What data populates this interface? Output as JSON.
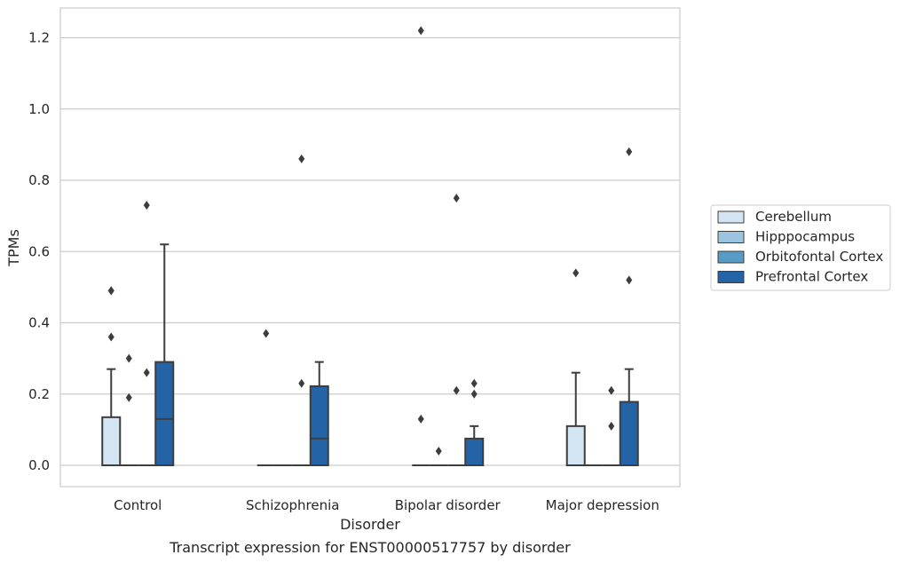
{
  "caption": "Transcript expression for ENST00000517757 by disorder",
  "chart_data": {
    "type": "box",
    "xlabel": "Disorder",
    "ylabel": "TPMs",
    "ylim": [
      -0.06,
      1.28
    ],
    "yticks": [
      0.0,
      0.2,
      0.4,
      0.6,
      0.8,
      1.0,
      1.2
    ],
    "ytick_labels": [
      "0.0",
      "0.2",
      "0.4",
      "0.6",
      "0.8",
      "1.0",
      "1.2"
    ],
    "categories": [
      "Control",
      "Schizophrenia",
      "Bipolar disorder",
      "Major depression"
    ],
    "grid": "horizontal",
    "legend_position": "right",
    "series": [
      {
        "name": "Cerebellum",
        "color": "#d3e4f3",
        "boxes": [
          {
            "q1": 0,
            "median": 0,
            "q3": 0.135,
            "whisker_low": 0,
            "whisker_high": 0.27,
            "outliers": [
              0.36,
              0.49,
              0.49
            ]
          },
          {
            "q1": 0,
            "median": 0,
            "q3": 0,
            "whisker_low": 0,
            "whisker_high": 0,
            "outliers": [
              0.37
            ]
          },
          {
            "q1": 0,
            "median": 0,
            "q3": 0,
            "whisker_low": 0,
            "whisker_high": 0,
            "outliers": [
              0.13,
              1.22
            ]
          },
          {
            "q1": 0,
            "median": 0,
            "q3": 0.11,
            "whisker_low": 0,
            "whisker_high": 0.26,
            "outliers": [
              0.54
            ]
          }
        ]
      },
      {
        "name": "Hipppocampus",
        "color": "#9cc4de",
        "boxes": [
          {
            "q1": 0,
            "median": 0,
            "q3": 0,
            "whisker_low": 0,
            "whisker_high": 0,
            "outliers": [
              0.19,
              0.3
            ]
          },
          {
            "q1": 0,
            "median": 0,
            "q3": 0,
            "whisker_low": 0,
            "whisker_high": 0,
            "outliers": []
          },
          {
            "q1": 0,
            "median": 0,
            "q3": 0,
            "whisker_low": 0,
            "whisker_high": 0,
            "outliers": [
              0.04
            ]
          },
          {
            "q1": 0,
            "median": 0,
            "q3": 0,
            "whisker_low": 0,
            "whisker_high": 0,
            "outliers": []
          }
        ]
      },
      {
        "name": "Orbitofontal Cortex",
        "color": "#5a9ac6",
        "boxes": [
          {
            "q1": 0,
            "median": 0,
            "q3": 0,
            "whisker_low": 0,
            "whisker_high": 0,
            "outliers": [
              0.26,
              0.73
            ]
          },
          {
            "q1": 0,
            "median": 0,
            "q3": 0,
            "whisker_low": 0,
            "whisker_high": 0,
            "outliers": [
              0.23,
              0.86
            ]
          },
          {
            "q1": 0,
            "median": 0,
            "q3": 0,
            "whisker_low": 0,
            "whisker_high": 0,
            "outliers": [
              0.21,
              0.75
            ]
          },
          {
            "q1": 0,
            "median": 0,
            "q3": 0,
            "whisker_low": 0,
            "whisker_high": 0,
            "outliers": [
              0.11,
              0.21
            ]
          }
        ]
      },
      {
        "name": "Prefrontal Cortex",
        "color": "#2464a6",
        "boxes": [
          {
            "q1": 0,
            "median": 0.13,
            "q3": 0.29,
            "whisker_low": 0,
            "whisker_high": 0.62,
            "outliers": []
          },
          {
            "q1": 0,
            "median": 0.075,
            "q3": 0.222,
            "whisker_low": 0,
            "whisker_high": 0.29,
            "outliers": []
          },
          {
            "q1": 0,
            "median": 0,
            "q3": 0.075,
            "whisker_low": 0,
            "whisker_high": 0.11,
            "outliers": [
              0.2,
              0.23
            ]
          },
          {
            "q1": 0,
            "median": 0,
            "q3": 0.178,
            "whisker_low": 0,
            "whisker_high": 0.27,
            "outliers": [
              0.52,
              0.88
            ]
          }
        ]
      }
    ]
  }
}
